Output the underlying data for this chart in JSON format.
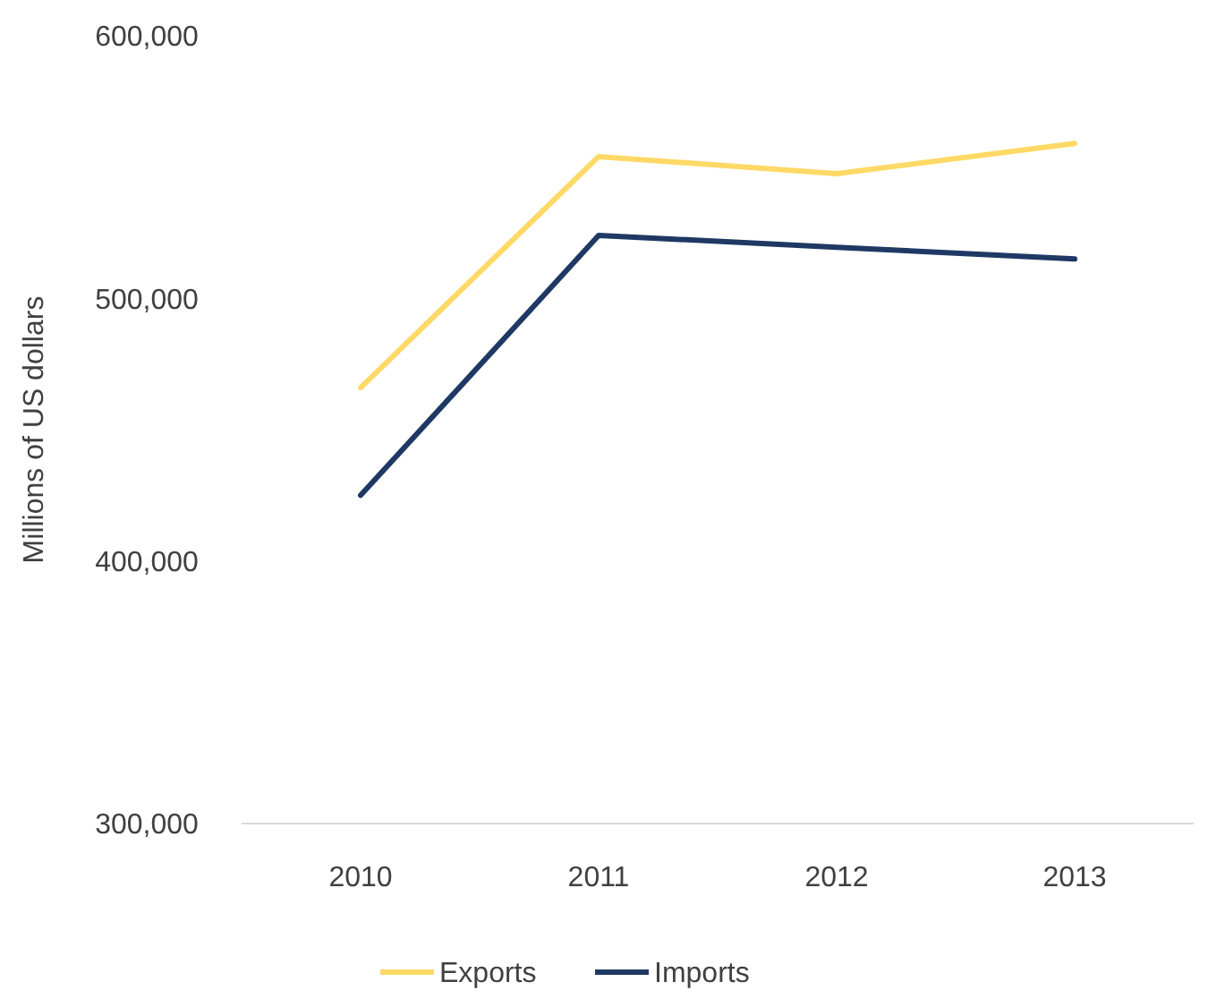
{
  "chart_data": {
    "type": "line",
    "ylabel": "Millions of US dollars",
    "categories": [
      "2010",
      "2011",
      "2012",
      "2013"
    ],
    "series": [
      {
        "name": "Exports",
        "color": "#ffd966",
        "values": [
          466000,
          554000,
          547500,
          559000
        ]
      },
      {
        "name": "Imports",
        "color": "#1f3864",
        "values": [
          425000,
          524000,
          519500,
          515000
        ]
      }
    ],
    "ylim": [
      300000,
      600000
    ],
    "yticks": [
      {
        "value": 300000,
        "label": "300,000"
      },
      {
        "value": 400000,
        "label": "400,000"
      },
      {
        "value": 500000,
        "label": "500,000"
      },
      {
        "value": 600000,
        "label": "600,000"
      }
    ],
    "legend": "bottom",
    "line_style": "solid",
    "marker": "none"
  }
}
